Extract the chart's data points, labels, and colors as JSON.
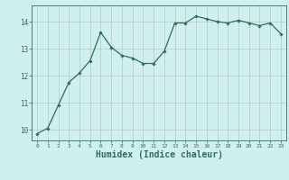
{
  "x": [
    0,
    1,
    2,
    3,
    4,
    5,
    6,
    7,
    8,
    9,
    10,
    11,
    12,
    13,
    14,
    15,
    16,
    17,
    18,
    19,
    20,
    21,
    22,
    23
  ],
  "y": [
    9.85,
    10.05,
    10.9,
    11.75,
    12.1,
    12.55,
    13.6,
    13.05,
    12.75,
    12.65,
    12.45,
    12.45,
    12.9,
    13.95,
    13.95,
    14.2,
    14.1,
    14.0,
    13.95,
    14.05,
    13.95,
    13.85,
    13.95,
    13.55
  ],
  "line_color": "#2e6e5e",
  "marker": "D",
  "marker_size": 1.8,
  "bg_color": "#cff0ec",
  "grid_color": "#b8c8c4",
  "tick_color": "#2e6e5e",
  "xlabel": "Humidex (Indice chaleur)",
  "xlabel_fontsize": 7,
  "ylabel_ticks": [
    10,
    11,
    12,
    13,
    14
  ],
  "xlim": [
    -0.5,
    23.5
  ],
  "ylim": [
    9.6,
    14.6
  ],
  "figsize": [
    3.2,
    2.0
  ],
  "dpi": 100
}
